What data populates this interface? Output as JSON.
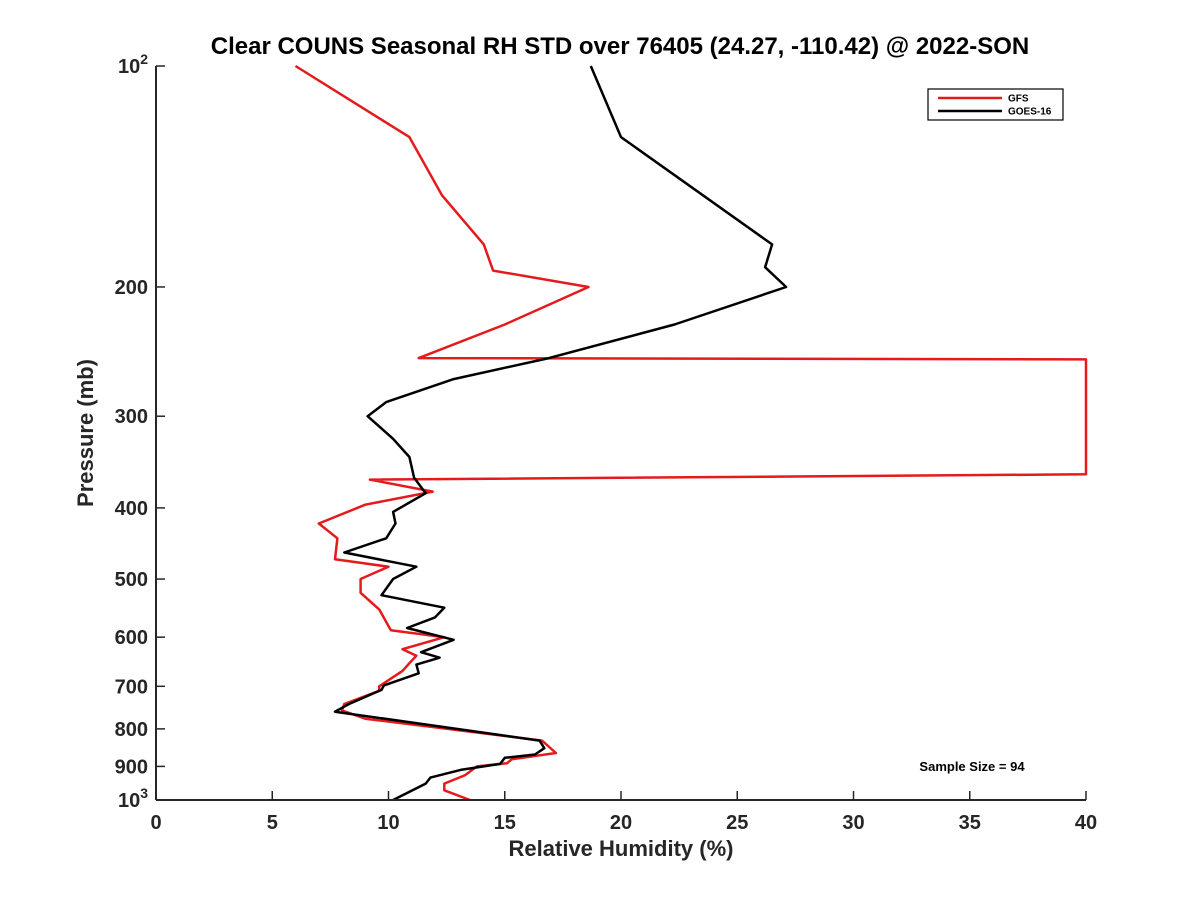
{
  "chart_data": {
    "type": "line",
    "title": "Clear COUNS Seasonal RH STD over 76405 (24.27, -110.42) @ 2022-SON",
    "xlabel": "Relative Humidity (%)",
    "ylabel": "Pressure (mb)",
    "xlim": [
      0,
      40
    ],
    "ylim": [
      100,
      1000
    ],
    "y_scale": "log",
    "y_reversed": true,
    "grid": false,
    "legend_position": "top-right",
    "x_ticks": [
      0,
      5,
      10,
      15,
      20,
      25,
      30,
      35,
      40
    ],
    "y_ticks": [
      {
        "value": 100,
        "label": "10",
        "sup": "2"
      },
      {
        "value": 200,
        "label": "200",
        "sup": ""
      },
      {
        "value": 300,
        "label": "300",
        "sup": ""
      },
      {
        "value": 400,
        "label": "400",
        "sup": ""
      },
      {
        "value": 500,
        "label": "500",
        "sup": ""
      },
      {
        "value": 600,
        "label": "600",
        "sup": ""
      },
      {
        "value": 700,
        "label": "700",
        "sup": ""
      },
      {
        "value": 800,
        "label": "800",
        "sup": ""
      },
      {
        "value": 900,
        "label": "900",
        "sup": ""
      },
      {
        "value": 1000,
        "label": "10",
        "sup": "3"
      }
    ],
    "series": [
      {
        "name": "GFS",
        "color": "#e41a1c",
        "points": [
          [
            6.0,
            100
          ],
          [
            10.9,
            125
          ],
          [
            12.3,
            150
          ],
          [
            14.1,
            175
          ],
          [
            14.5,
            190
          ],
          [
            18.6,
            200
          ],
          [
            15.0,
            225
          ],
          [
            11.3,
            250
          ],
          [
            40.0,
            251
          ],
          [
            40.0,
            360
          ],
          [
            9.2,
            366
          ],
          [
            11.9,
            380
          ],
          [
            9.0,
            396
          ],
          [
            7.0,
            420
          ],
          [
            7.8,
            440
          ],
          [
            7.7,
            470
          ],
          [
            10.0,
            481
          ],
          [
            8.8,
            500
          ],
          [
            8.8,
            522
          ],
          [
            9.6,
            550
          ],
          [
            10.1,
            587
          ],
          [
            12.4,
            600
          ],
          [
            10.6,
            623
          ],
          [
            11.2,
            636
          ],
          [
            10.9,
            651
          ],
          [
            10.6,
            667
          ],
          [
            9.6,
            700
          ],
          [
            9.6,
            710
          ],
          [
            8.1,
            740
          ],
          [
            8.0,
            755
          ],
          [
            9.0,
            775
          ],
          [
            16.6,
            830
          ],
          [
            17.2,
            863
          ],
          [
            15.3,
            880
          ],
          [
            15.1,
            891
          ],
          [
            13.8,
            900
          ],
          [
            13.3,
            925
          ],
          [
            12.4,
            950
          ],
          [
            12.4,
            970
          ],
          [
            13.5,
            1000
          ]
        ]
      },
      {
        "name": "GOES-16",
        "color": "#000000",
        "points": [
          [
            18.7,
            100
          ],
          [
            20.0,
            125
          ],
          [
            26.5,
            175
          ],
          [
            26.2,
            188
          ],
          [
            27.1,
            200
          ],
          [
            22.3,
            225
          ],
          [
            16.9,
            250
          ],
          [
            12.8,
            267
          ],
          [
            9.9,
            287
          ],
          [
            9.1,
            300
          ],
          [
            10.2,
            322
          ],
          [
            10.9,
            341
          ],
          [
            11.1,
            364
          ],
          [
            11.6,
            382
          ],
          [
            10.2,
            405
          ],
          [
            10.3,
            420
          ],
          [
            9.9,
            440
          ],
          [
            8.1,
            460
          ],
          [
            11.2,
            481
          ],
          [
            10.2,
            500
          ],
          [
            9.7,
            526
          ],
          [
            12.4,
            547
          ],
          [
            12.0,
            564
          ],
          [
            10.8,
            583
          ],
          [
            12.8,
            605
          ],
          [
            11.4,
            629
          ],
          [
            12.2,
            640
          ],
          [
            11.2,
            654
          ],
          [
            11.3,
            672
          ],
          [
            9.8,
            698
          ],
          [
            9.7,
            708
          ],
          [
            8.3,
            740
          ],
          [
            7.7,
            758
          ],
          [
            16.5,
            830
          ],
          [
            16.7,
            850
          ],
          [
            16.3,
            867
          ],
          [
            15.0,
            876
          ],
          [
            14.8,
            893
          ],
          [
            13.1,
            910
          ],
          [
            11.8,
            932
          ],
          [
            11.6,
            950
          ],
          [
            10.2,
            1000
          ]
        ]
      }
    ],
    "annotation": "Sample Size = 94"
  }
}
